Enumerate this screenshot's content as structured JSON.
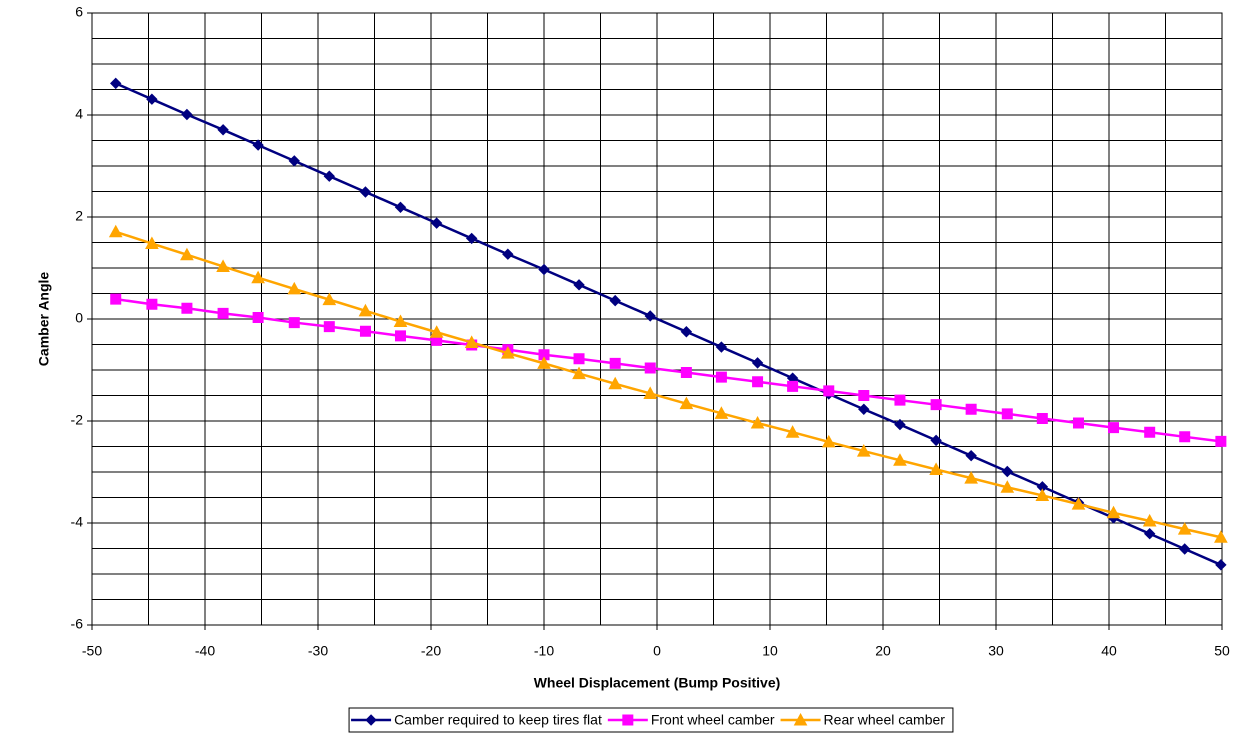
{
  "chart_data": {
    "type": "line",
    "x_label": "Wheel Displacement (Bump Positive)",
    "y_label": "Camber Angle",
    "xlim": [
      -50,
      50
    ],
    "ylim": [
      -6,
      6
    ],
    "xticks": [
      -50,
      -40,
      -30,
      -20,
      -10,
      0,
      10,
      20,
      30,
      40,
      50
    ],
    "yticks": [
      -6,
      -4,
      -2,
      0,
      2,
      4,
      6
    ],
    "xgrid": [
      -45,
      -35,
      -25,
      -15,
      -5,
      5,
      15,
      25,
      35,
      45
    ],
    "ygrid": [
      -5.5,
      -5,
      -4.5,
      -3.5,
      -3,
      -2.5,
      -1.5,
      -1,
      -0.5,
      0.5,
      1,
      1.5,
      2.5,
      3,
      3.5,
      4.5,
      5,
      5.5
    ],
    "grid": true,
    "legend": "bottom",
    "x": [
      -47.9,
      -44.7,
      -41.6,
      -38.4,
      -35.3,
      -32.1,
      -29.0,
      -25.8,
      -22.7,
      -19.5,
      -16.4,
      -13.2,
      -10.0,
      -6.9,
      -3.7,
      -0.6,
      2.6,
      5.7,
      8.9,
      12.0,
      15.2,
      18.3,
      21.5,
      24.7,
      27.8,
      31.0,
      34.1,
      37.3,
      40.4,
      43.6,
      46.7,
      49.9
    ],
    "series": [
      {
        "name": "Camber required to keep tires flat",
        "color": "#000080",
        "marker": "diamond",
        "values": [
          4.62,
          4.31,
          4.01,
          3.71,
          3.41,
          3.1,
          2.8,
          2.49,
          2.19,
          1.88,
          1.58,
          1.27,
          0.97,
          0.67,
          0.36,
          0.06,
          -0.25,
          -0.55,
          -0.86,
          -1.16,
          -1.47,
          -1.77,
          -2.07,
          -2.38,
          -2.68,
          -2.99,
          -3.29,
          -3.6,
          -3.9,
          -4.21,
          -4.51,
          -4.82
        ]
      },
      {
        "name": "Front wheel camber",
        "color": "#ff00ff",
        "marker": "square",
        "values": [
          0.39,
          0.29,
          0.21,
          0.11,
          0.03,
          -0.07,
          -0.15,
          -0.24,
          -0.33,
          -0.42,
          -0.51,
          -0.6,
          -0.7,
          -0.78,
          -0.87,
          -0.96,
          -1.05,
          -1.14,
          -1.23,
          -1.32,
          -1.41,
          -1.5,
          -1.59,
          -1.68,
          -1.77,
          -1.86,
          -1.95,
          -2.04,
          -2.13,
          -2.22,
          -2.31,
          -2.4
        ]
      },
      {
        "name": "Rear wheel camber",
        "color": "#ffa500",
        "marker": "triangle",
        "values": [
          1.71,
          1.48,
          1.26,
          1.03,
          0.81,
          0.59,
          0.38,
          0.16,
          -0.05,
          -0.26,
          -0.46,
          -0.67,
          -0.87,
          -1.07,
          -1.27,
          -1.46,
          -1.66,
          -1.85,
          -2.04,
          -2.22,
          -2.41,
          -2.59,
          -2.77,
          -2.95,
          -3.12,
          -3.3,
          -3.46,
          -3.63,
          -3.8,
          -3.96,
          -4.12,
          -4.28
        ]
      }
    ]
  }
}
